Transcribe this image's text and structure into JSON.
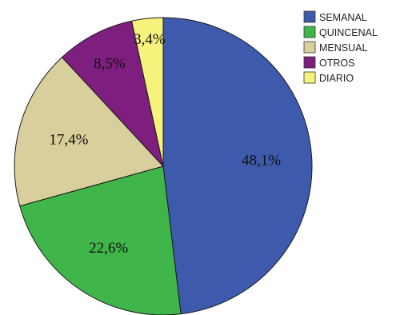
{
  "chart_data": {
    "type": "pie",
    "slices": [
      {
        "label": "SEMANAL",
        "value": 48.1,
        "display": "48,1%",
        "color": "#3d5aad"
      },
      {
        "label": "QUINCENAL",
        "value": 22.6,
        "display": "22,6%",
        "color": "#3fb54a"
      },
      {
        "label": "MENSUAL",
        "value": 17.4,
        "display": "17,4%",
        "color": "#d9cf9c"
      },
      {
        "label": "OTROS",
        "value": 8.5,
        "display": "8,5%",
        "color": "#7e1f7f"
      },
      {
        "label": "DIARIO",
        "value": 3.4,
        "display": "3,4%",
        "color": "#f6f27c"
      }
    ],
    "legend": {
      "position": "top-right"
    }
  }
}
